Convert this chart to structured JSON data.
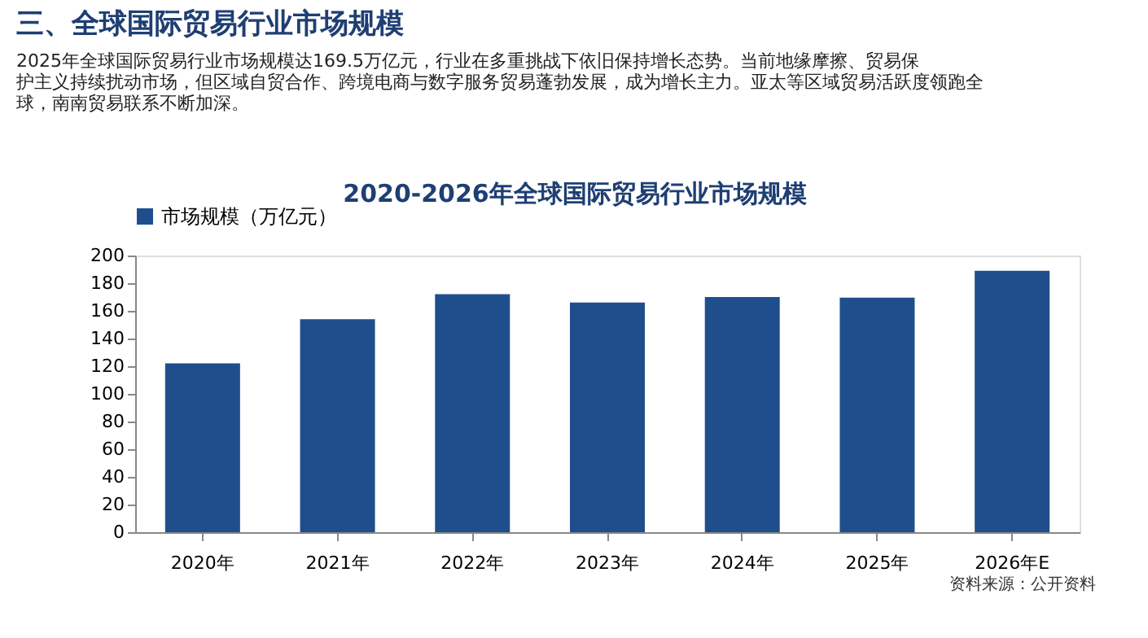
{
  "chart_data": {
    "type": "bar",
    "title": "三、全球国际贸易行业市场规模",
    "subtitle": "2025年全球国际贸易行业市场规模达169.5万亿元，行业在多重挑战下依旧保持增长态势。当前地缘摩擦、贸易保护主义持续扰动市场，但区域自贸合作、跨境电商与数字服务贸易蓬勃发展，成为增长主力。亚太等区域贸易活跃度领跑全球，南南贸易联系不断加深。",
    "annotations": [
      "2020-2026年全球国际贸易行业市场规模",
      "资料来源：公开资料"
    ],
    "categories": [
      "2020年",
      "2021年",
      "2022年",
      "2023年",
      "2024年",
      "2025年",
      "2026年E"
    ],
    "series": [
      {
        "name": "市场规模（万亿元）",
        "color": "#1f4e8c",
        "values": [
          122,
          154,
          172,
          166,
          170,
          169.5,
          189
        ]
      }
    ],
    "ylim": [
      0,
      200
    ],
    "yticks": [
      0,
      20,
      40,
      60,
      80,
      100,
      120,
      140,
      160,
      180,
      200
    ],
    "grid": false,
    "legend": "top"
  }
}
